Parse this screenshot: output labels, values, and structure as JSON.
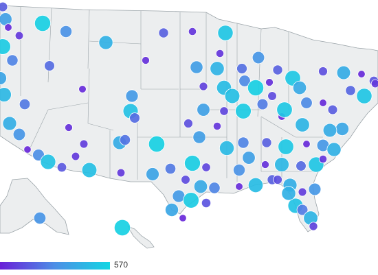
{
  "map": {
    "land_color": "#eceeef",
    "border_color": "#9aa3a8",
    "markers": [
      {
        "v": 0.62
      },
      {
        "v": 0.05
      },
      {
        "v": 0.12
      },
      {
        "v": 0.95
      },
      {
        "v": 0.52
      },
      {
        "v": 0.74
      },
      {
        "v": 0.3
      },
      {
        "v": 0.1
      },
      {
        "v": 0.88
      },
      {
        "v": 0.1
      },
      {
        "v": 0.92
      },
      {
        "v": 0.45
      },
      {
        "v": 0.35
      },
      {
        "v": 0.08
      },
      {
        "v": 0.6
      },
      {
        "v": 0.75
      },
      {
        "v": 0.55
      },
      {
        "v": 0.3
      },
      {
        "v": 0.9
      },
      {
        "v": 0.22
      },
      {
        "v": 0.7
      },
      {
        "v": 0.05
      },
      {
        "v": 0.25
      },
      {
        "v": 0.65
      },
      {
        "v": 0.78
      },
      {
        "v": 0.4
      },
      {
        "v": 0.06
      },
      {
        "v": 0.58
      },
      {
        "v": 0.15
      },
      {
        "v": 0.82
      },
      {
        "v": 0.48
      },
      {
        "v": 0.95
      },
      {
        "v": 0.2
      },
      {
        "v": 0.68
      },
      {
        "v": 0.05
      },
      {
        "v": 0.32
      },
      {
        "v": 0.88
      },
      {
        "v": 0.12
      },
      {
        "v": 0.72
      },
      {
        "v": 0.55
      },
      {
        "v": 0.08
      },
      {
        "v": 0.85
      },
      {
        "v": 0.35
      },
      {
        "v": 0.62
      },
      {
        "v": 0.18
      },
      {
        "v": 0.92
      },
      {
        "v": 0.42
      },
      {
        "v": 0.06
      },
      {
        "v": 0.76
      },
      {
        "v": 0.28
      },
      {
        "v": 0.66
      },
      {
        "v": 0.04
      },
      {
        "v": 0.5
      },
      {
        "v": 0.86
      },
      {
        "v": 0.14
      },
      {
        "v": 0.7
      },
      {
        "v": 0.38
      },
      {
        "v": 0.96
      },
      {
        "v": 0.22
      },
      {
        "v": 0.6
      },
      {
        "v": 0.1
      },
      {
        "v": 0.8
      },
      {
        "v": 0.45
      },
      {
        "v": 0.3
      },
      {
        "v": 0.9
      },
      {
        "v": 0.05
      },
      {
        "v": 0.56
      },
      {
        "v": 0.74
      },
      {
        "v": 0.26
      },
      {
        "v": 0.84
      },
      {
        "v": 0.12
      },
      {
        "v": 0.64
      },
      {
        "v": 0.4
      },
      {
        "v": 0.94
      },
      {
        "v": 0.18
      },
      {
        "v": 0.52
      },
      {
        "v": 0.08
      },
      {
        "v": 0.78
      },
      {
        "v": 0.34
      },
      {
        "v": 0.88
      },
      {
        "v": 0.2
      },
      {
        "v": 0.68
      },
      {
        "v": 0.46
      },
      {
        "v": 0.06
      },
      {
        "v": 0.82
      },
      {
        "v": 0.3
      },
      {
        "v": 0.72
      },
      {
        "v": 0.14
      },
      {
        "v": 0.58
      },
      {
        "v": 0.92
      },
      {
        "v": 0.24
      },
      {
        "v": 0.66
      },
      {
        "v": 0.04
      },
      {
        "v": 0.86
      },
      {
        "v": 0.42
      },
      {
        "v": 0.76
      },
      {
        "v": 0.16
      },
      {
        "v": 0.54
      },
      {
        "v": 0.96
      },
      {
        "v": 0.28
      },
      {
        "v": 0.7
      },
      {
        "v": 0.1
      },
      {
        "v": 0.62
      },
      {
        "v": 0.84
      },
      {
        "v": 0.36
      },
      {
        "v": 0.08
      },
      {
        "v": 0.9
      },
      {
        "v": 0.48
      },
      {
        "v": 0.22
      },
      {
        "v": 0.74
      },
      {
        "v": 0.56
      },
      {
        "v": 0.12
      }
    ]
  },
  "legend": {
    "colors": [
      "#6a1fd8",
      "#4d8fe6",
      "#12d6e3"
    ],
    "max_label": "570"
  }
}
